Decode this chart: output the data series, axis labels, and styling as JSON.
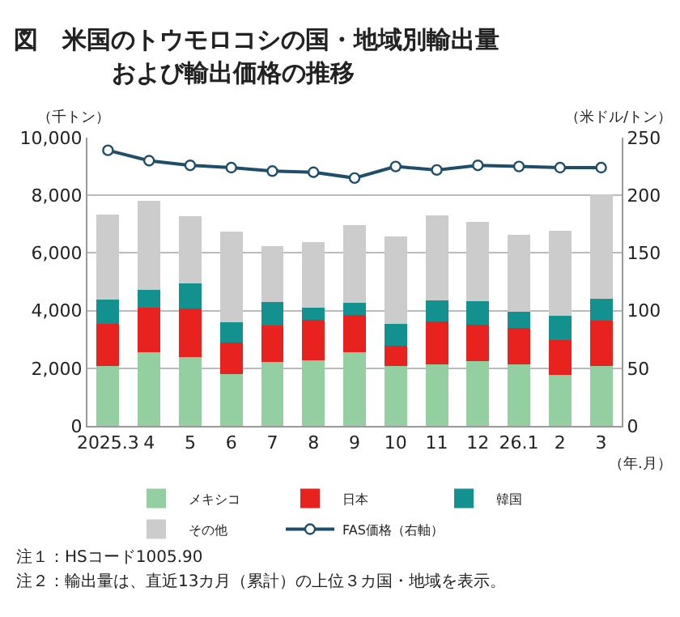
{
  "chart_data": {
    "type": "bar",
    "title": "図　米国のトウモロコシの国・地域別輸出量",
    "subtitle": "および輸出価格の推移",
    "ylabel": "（千トン）",
    "y2label": "（米ドル/トン）",
    "xlabel": "（年.月）",
    "categories": [
      "2025.3",
      "4",
      "5",
      "6",
      "7",
      "8",
      "9",
      "10",
      "11",
      "12",
      "26.1",
      "2",
      "3"
    ],
    "stacked": true,
    "series": [
      {
        "name": "メキシコ",
        "color": "#93cfa0",
        "values": [
          2070,
          2570,
          2400,
          1810,
          2210,
          2280,
          2570,
          2090,
          2140,
          2240,
          2140,
          1780,
          2090
        ]
      },
      {
        "name": "日本",
        "color": "#e8221e",
        "values": [
          1480,
          1530,
          1670,
          1090,
          1260,
          1390,
          1270,
          700,
          1480,
          1280,
          1270,
          1200,
          1550
        ]
      },
      {
        "name": "韓国",
        "color": "#12918f",
        "values": [
          830,
          610,
          880,
          690,
          820,
          420,
          440,
          760,
          740,
          820,
          560,
          850,
          760
        ]
      },
      {
        "name": "その他",
        "color": "#cccccc",
        "values": [
          2940,
          3090,
          2330,
          3150,
          1950,
          2300,
          2690,
          3010,
          2940,
          2750,
          2650,
          2940,
          3620
        ]
      },
      {
        "name": "FAS価格（右軸）",
        "type": "line",
        "axis": "y2",
        "color": "#1f4e6b",
        "marker": "circle",
        "values": [
          239,
          230,
          226,
          224,
          221,
          220,
          215,
          225,
          222,
          226,
          225,
          224,
          224
        ]
      }
    ],
    "ylim": [
      0,
      10000
    ],
    "yticks": [
      {
        "value": 0,
        "label": "0"
      },
      {
        "value": 2000,
        "label": "2,000"
      },
      {
        "value": 4000,
        "label": "4,000"
      },
      {
        "value": 6000,
        "label": "6,000"
      },
      {
        "value": 8000,
        "label": "8,000"
      },
      {
        "value": 10000,
        "label": "10,000"
      }
    ],
    "y2lim": [
      0,
      250
    ],
    "y2ticks": [
      0,
      50,
      100,
      150,
      200,
      250
    ],
    "grid": "y",
    "legend": "bottom",
    "annotations": [
      "注１：HSコード1005.90",
      "注２：輸出量は、直近13カ月（累計）の上位３カ国・地域を表示。"
    ]
  }
}
